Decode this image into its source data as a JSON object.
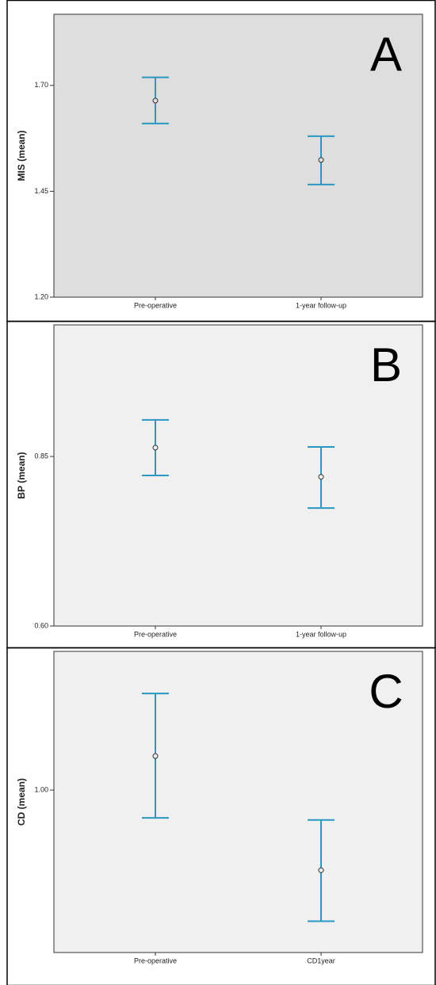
{
  "chart_data": [
    {
      "type": "errorbar",
      "annotation": "A",
      "ylabel": "MIS (mean)",
      "categories": [
        "Pre-operative",
        "1-year follow-up"
      ],
      "series": [
        {
          "color": "#2a98c2",
          "values": [
            1.664,
            1.524
          ],
          "lower": [
            1.61,
            1.466
          ],
          "upper": [
            1.719,
            1.58
          ]
        }
      ],
      "ylim": [
        1.2,
        1.868
      ],
      "yticks": [
        {
          "value": 1.2,
          "label": "1.20"
        },
        {
          "value": 1.45,
          "label": "1.45"
        },
        {
          "value": 1.7,
          "label": "1.70"
        }
      ],
      "plot_background": "#dedede"
    },
    {
      "type": "errorbar",
      "annotation": "B",
      "ylabel": "BP (mean)",
      "categories": [
        "Pre-operative",
        "1-year follow-up"
      ],
      "series": [
        {
          "color": "#2a98c2",
          "values": [
            0.863,
            0.82
          ],
          "lower": [
            0.822,
            0.774
          ],
          "upper": [
            0.904,
            0.864
          ]
        }
      ],
      "ylim": [
        0.6,
        1.044
      ],
      "yticks": [
        {
          "value": 0.6,
          "label": "0.60"
        },
        {
          "value": 0.85,
          "label": "0.85"
        }
      ],
      "plot_background": "#f0f0f0"
    },
    {
      "type": "errorbar",
      "annotation": "C",
      "ylabel": "CD (mean)",
      "categories": [
        "Pre-operative",
        "CD1year"
      ],
      "series": [
        {
          "color": "#2a98c2",
          "values": [
            1.05,
            0.882
          ],
          "lower": [
            0.959,
            0.807
          ],
          "upper": [
            1.142,
            0.956
          ]
        }
      ],
      "ylim": [
        0.761,
        1.204
      ],
      "yticks": [
        {
          "value": 1.0,
          "label": "1.00"
        }
      ],
      "plot_background": "#f0f0f0"
    }
  ]
}
